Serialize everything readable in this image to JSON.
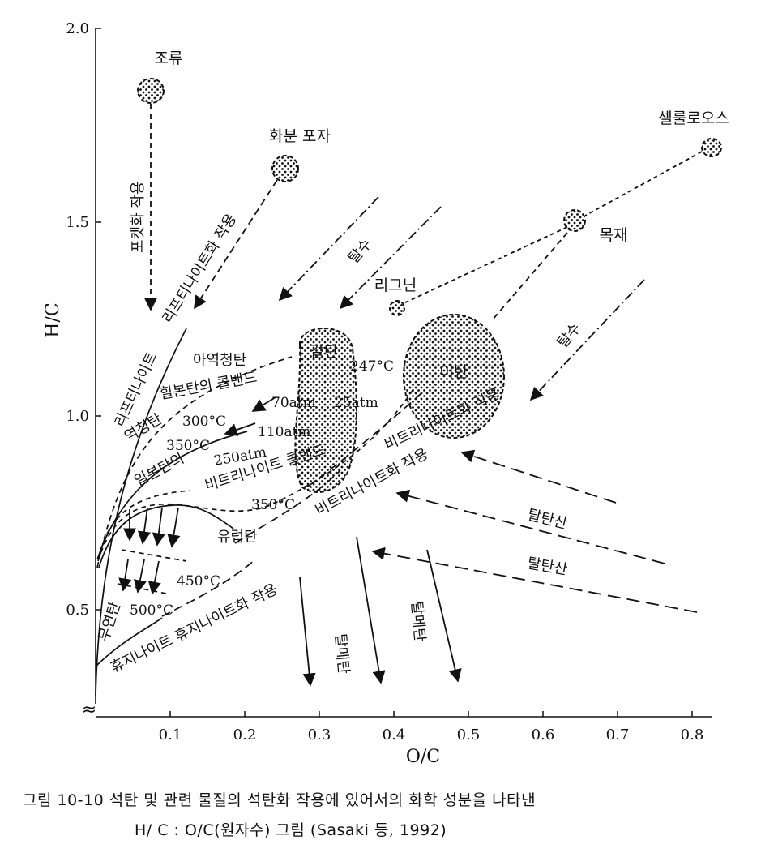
{
  "chart_data": {
    "type": "scatter",
    "xlabel": "O/C",
    "ylabel": "H/C",
    "xlim": [
      0,
      0.83
    ],
    "ylim": [
      0.3,
      2.0
    ],
    "x_ticks": [
      "0.1",
      "0.2",
      "0.3",
      "0.4",
      "0.5",
      "0.6",
      "0.7",
      "0.8"
    ],
    "y_ticks": [
      "0.5",
      "1.0",
      "1.5",
      "2.0"
    ],
    "axis_break": "≈",
    "grid": false,
    "materials": [
      {
        "name": "조류",
        "x": 0.075,
        "y": 1.85
      },
      {
        "name": "화분 포자",
        "x": 0.255,
        "y": 1.64
      },
      {
        "name": "셀룰로오스",
        "x": 0.825,
        "y": 1.7
      },
      {
        "name": "목재",
        "x": 0.64,
        "y": 1.5
      },
      {
        "name": "리그닌",
        "x": 0.4,
        "y": 1.26
      },
      {
        "name": "갈탄",
        "x": 0.31,
        "y": 1.05
      },
      {
        "name": "이탄",
        "x": 0.52,
        "y": 1.04
      }
    ],
    "conditions": [
      {
        "label": "247°C",
        "x": 0.38,
        "y": 1.11
      },
      {
        "label": "70atm",
        "x": 0.24,
        "y": 1.02
      },
      {
        "label": "25atm",
        "x": 0.37,
        "y": 1.02
      },
      {
        "label": "300°C",
        "x": 0.17,
        "y": 1.0
      },
      {
        "label": "110atm",
        "x": 0.24,
        "y": 0.96
      },
      {
        "label": "350°C",
        "x": 0.14,
        "y": 0.94
      },
      {
        "label": "250atm",
        "x": 0.15,
        "y": 0.87
      },
      {
        "label": "350°C",
        "x": 0.24,
        "y": 0.78
      },
      {
        "label": "450°C",
        "x": 0.14,
        "y": 0.62
      },
      {
        "label": "500°C",
        "x": 0.08,
        "y": 0.56
      }
    ],
    "region_labels": [
      "아역청탄",
      "힐본탄의 콜밴드",
      "역청탄",
      "일본탄의",
      "비트리나이트 콜밴드",
      "유럽탄",
      "무연탄"
    ],
    "process_labels": [
      "포켓화 작용",
      "리프티나이트화 작용",
      "리프티나이트",
      "탈수",
      "탈수",
      "비트리나이트화 작용",
      "비트리나이트화 작용",
      "휴지나이트 휴지나이트화 작용",
      "탈탄산",
      "탈탄산",
      "탈메탄",
      "탈메탄"
    ]
  },
  "caption": {
    "line1": "그림 10-10  석탄 및 관련 물질의 석탄화 작용에 있어서의 화학 성분을 나타낸",
    "line2": "H/ C : O/C(원자수) 그림 (Sasaki 등, 1992)"
  }
}
